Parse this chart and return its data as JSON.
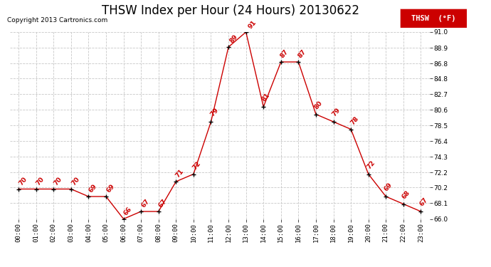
{
  "title": "THSW Index per Hour (24 Hours) 20130622",
  "copyright": "Copyright 2013 Cartronics.com",
  "legend_label": "THSW  (°F)",
  "hour_labels": [
    "00:00",
    "01:00",
    "02:00",
    "03:00",
    "04:00",
    "05:00",
    "06:00",
    "07:00",
    "08:00",
    "09:00",
    "10:00",
    "11:00",
    "12:00",
    "13:00",
    "14:00",
    "15:00",
    "16:00",
    "17:00",
    "18:00",
    "19:00",
    "20:00",
    "21:00",
    "22:00",
    "23:00"
  ],
  "hours": [
    0,
    1,
    2,
    3,
    4,
    5,
    6,
    7,
    8,
    9,
    10,
    11,
    12,
    13,
    14,
    15,
    16,
    17,
    18,
    19,
    20,
    21,
    22,
    23
  ],
  "values": [
    70,
    70,
    70,
    70,
    69,
    69,
    66,
    67,
    67,
    71,
    72,
    79,
    89,
    91,
    81,
    87,
    87,
    80,
    79,
    78,
    72,
    69,
    68,
    67
  ],
  "value_labels": [
    "70",
    "70",
    "70",
    "70",
    "69",
    "69",
    "66",
    "67",
    "67",
    "71",
    "72",
    "79",
    "89",
    "91",
    "81",
    "87",
    "87",
    "80",
    "79",
    "78",
    "72",
    "69",
    "68",
    "67"
  ],
  "ylim_min": 66.0,
  "ylim_max": 91.0,
  "ytick_vals": [
    66.0,
    68.1,
    70.2,
    72.2,
    74.3,
    76.4,
    78.5,
    80.6,
    82.7,
    84.8,
    86.8,
    88.9,
    91.0
  ],
  "ytick_labels": [
    "66.0",
    "68.1",
    "70.2",
    "72.2",
    "74.3",
    "76.4",
    "78.5",
    "80.6",
    "82.7",
    "84.8",
    "86.8",
    "88.9",
    "91.0"
  ],
  "line_color": "#cc0000",
  "marker_color": "#000000",
  "grid_color": "#c8c8c8",
  "bg_color": "#ffffff",
  "legend_bg": "#cc0000",
  "legend_text_color": "#ffffff",
  "title_fontsize": 12,
  "copyright_fontsize": 6.5,
  "tick_fontsize": 6.5,
  "data_label_fontsize": 6.5,
  "legend_fontsize": 7.5
}
